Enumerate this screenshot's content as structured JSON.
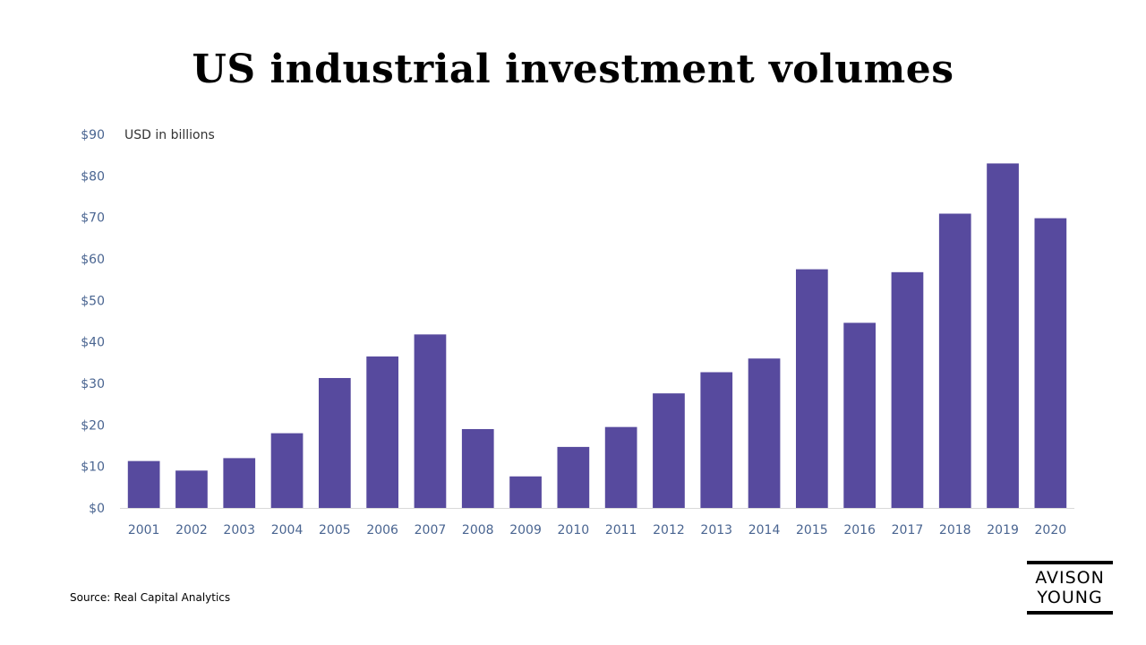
{
  "chart_data": {
    "type": "bar",
    "title": "US industrial investment volumes",
    "ylabel": "USD in billions",
    "xlabel": "",
    "categories": [
      "2001",
      "2002",
      "2003",
      "2004",
      "2005",
      "2006",
      "2007",
      "2008",
      "2009",
      "2010",
      "2011",
      "2012",
      "2013",
      "2014",
      "2015",
      "2016",
      "2017",
      "2018",
      "2019",
      "2020"
    ],
    "values": [
      11.3,
      9.0,
      12.0,
      18.0,
      31.3,
      36.5,
      41.8,
      19.0,
      7.6,
      14.7,
      19.5,
      27.6,
      32.7,
      36.0,
      57.5,
      44.6,
      56.8,
      70.9,
      83.0,
      69.8
    ],
    "ylim": [
      0,
      90
    ],
    "yticks": [
      "$0",
      "$10",
      "$20",
      "$30",
      "$40",
      "$50",
      "$60",
      "$70",
      "$80",
      "$90"
    ],
    "grid": false,
    "bar_color": "#574a9e",
    "tick_color": "#4a6591"
  },
  "source": "Source: Real Capital Analytics",
  "logo": {
    "line1": "AVISON",
    "line2": "YOUNG"
  }
}
